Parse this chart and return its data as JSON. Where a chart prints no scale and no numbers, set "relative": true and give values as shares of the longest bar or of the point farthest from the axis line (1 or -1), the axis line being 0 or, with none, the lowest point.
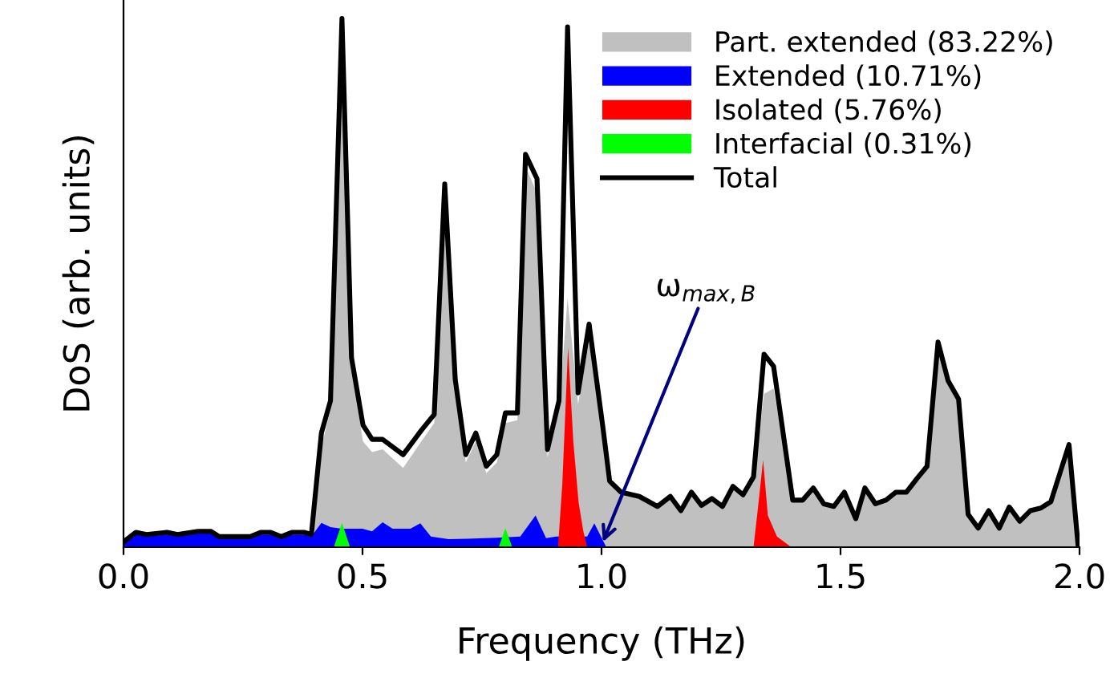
{
  "chart_data": {
    "type": "area",
    "relative": true,
    "xlabel": "Frequency (THz)",
    "ylabel": "DoS (arb. units)",
    "xlim": [
      0,
      2.0
    ],
    "xticks": [
      {
        "value": 0,
        "label": "0.0"
      },
      0.5,
      {
        "value": 1,
        "label": "1.0"
      },
      1.5,
      {
        "value": 2,
        "label": "2.0"
      }
    ],
    "legend": "top right",
    "grid": false,
    "annotations": [
      {
        "text": "ω$_{max,B}$",
        "x": 1.003,
        "y": 0.01
      }
    ],
    "series": [
      {
        "name": "Part. extended (83.22%)",
        "color": "#c0c0c0",
        "x": [
          0.39,
          0.414,
          0.433,
          0.457,
          0.477,
          0.501,
          0.52,
          0.542,
          0.585,
          0.623,
          0.65,
          0.672,
          0.694,
          0.716,
          0.737,
          0.759,
          0.781,
          0.799,
          0.824,
          0.841,
          0.865,
          0.887,
          0.911,
          0.929,
          0.951,
          0.974,
          1.003,
          1.017,
          1.041,
          1.079,
          1.117,
          1.144,
          1.166,
          1.188,
          1.209,
          1.231,
          1.253,
          1.275,
          1.296,
          1.318,
          1.34,
          1.36,
          1.4,
          1.421,
          1.443,
          1.465,
          1.486,
          1.508,
          1.532,
          1.551,
          1.573,
          1.595,
          1.616,
          1.638,
          1.66,
          1.681,
          1.704,
          1.725,
          1.747,
          1.767,
          1.788,
          1.81,
          1.832,
          1.853,
          1.875,
          1.897,
          1.919,
          1.94,
          1.978,
          1.997
        ],
        "values": [
          0.02,
          0.19,
          0.26,
          0.97,
          0.34,
          0.2,
          0.18,
          0.185,
          0.15,
          0.2,
          0.235,
          0.66,
          0.3,
          0.16,
          0.2,
          0.14,
          0.16,
          0.235,
          0.24,
          0.72,
          0.67,
          0.17,
          0.26,
          0.47,
          0.27,
          0.39,
          0.21,
          0.12,
          0.1,
          0.092,
          0.073,
          0.092,
          0.065,
          0.1,
          0.075,
          0.088,
          0.073,
          0.11,
          0.095,
          0.125,
          0.29,
          0.3,
          0.085,
          0.085,
          0.108,
          0.078,
          0.073,
          0.1,
          0.05,
          0.108,
          0.078,
          0.085,
          0.1,
          0.1,
          0.126,
          0.149,
          0.384,
          0.311,
          0.276,
          0.058,
          0.032,
          0.065,
          0.032,
          0.072,
          0.045,
          0.065,
          0.07,
          0.082,
          0.19,
          0.0
        ]
      },
      {
        "name": "Extended (10.71%)",
        "color": "#0000ff",
        "x": [
          0.0,
          0.026,
          0.048,
          0.091,
          0.113,
          0.156,
          0.183,
          0.2,
          0.265,
          0.287,
          0.308,
          0.33,
          0.352,
          0.379,
          0.393,
          0.414,
          0.433,
          0.457,
          0.5,
          0.52,
          0.542,
          0.563,
          0.6,
          0.621,
          0.643,
          0.68,
          0.72,
          0.78,
          0.83,
          0.862,
          0.884,
          0.905,
          0.97,
          0.985,
          1.01
        ],
        "values": [
          0.008,
          0.024,
          0.02,
          0.024,
          0.02,
          0.026,
          0.026,
          0.016,
          0.016,
          0.024,
          0.024,
          0.016,
          0.024,
          0.024,
          0.02,
          0.046,
          0.038,
          0.035,
          0.035,
          0.03,
          0.047,
          0.035,
          0.035,
          0.045,
          0.02,
          0.015,
          0.016,
          0.018,
          0.02,
          0.06,
          0.017,
          0.02,
          0.02,
          0.045,
          0.0
        ]
      },
      {
        "name": "Isolated (5.76%)",
        "color": "#ff0000",
        "x": [
          0.909,
          0.918,
          0.93,
          0.941,
          0.952,
          0.962,
          0.97,
          1.318,
          1.328,
          1.338,
          1.348,
          1.367,
          1.397
        ],
        "values": [
          0.0,
          0.12,
          0.378,
          0.2,
          0.085,
          0.03,
          0.0,
          0.0,
          0.08,
          0.165,
          0.06,
          0.02,
          0.0
        ]
      },
      {
        "name": "Interfacial (0.31%)",
        "color": "#00ff00",
        "x": [
          0.44,
          0.457,
          0.474,
          0.485,
          0.785,
          0.799,
          0.813
        ],
        "values": [
          0.0,
          0.046,
          0.0,
          null,
          0.0,
          0.036,
          0.0
        ]
      },
      {
        "name": "Total",
        "type": "line",
        "color": "#000000",
        "x": [
          0.0,
          0.026,
          0.048,
          0.091,
          0.113,
          0.156,
          0.183,
          0.2,
          0.265,
          0.287,
          0.308,
          0.33,
          0.352,
          0.379,
          0.393,
          0.414,
          0.433,
          0.457,
          0.477,
          0.501,
          0.52,
          0.542,
          0.585,
          0.623,
          0.65,
          0.672,
          0.694,
          0.716,
          0.737,
          0.759,
          0.781,
          0.799,
          0.824,
          0.841,
          0.865,
          0.887,
          0.911,
          0.929,
          0.951,
          0.974,
          1.003,
          1.017,
          1.041,
          1.079,
          1.117,
          1.144,
          1.166,
          1.188,
          1.209,
          1.231,
          1.253,
          1.275,
          1.296,
          1.318,
          1.34,
          1.36,
          1.4,
          1.421,
          1.443,
          1.465,
          1.486,
          1.508,
          1.532,
          1.551,
          1.573,
          1.595,
          1.616,
          1.638,
          1.66,
          1.681,
          1.704,
          1.725,
          1.747,
          1.767,
          1.788,
          1.81,
          1.832,
          1.853,
          1.875,
          1.897,
          1.919,
          1.94,
          1.978,
          1.997
        ],
        "values": [
          0.01,
          0.028,
          0.024,
          0.028,
          0.024,
          0.03,
          0.03,
          0.02,
          0.02,
          0.028,
          0.028,
          0.02,
          0.028,
          0.028,
          0.024,
          0.216,
          0.277,
          1.0,
          0.358,
          0.231,
          0.204,
          0.204,
          0.175,
          0.221,
          0.251,
          0.687,
          0.317,
          0.175,
          0.216,
          0.153,
          0.175,
          0.254,
          0.254,
          0.743,
          0.697,
          0.185,
          0.277,
          0.984,
          0.292,
          0.422,
          0.226,
          0.125,
          0.104,
          0.096,
          0.077,
          0.096,
          0.069,
          0.104,
          0.079,
          0.092,
          0.077,
          0.115,
          0.099,
          0.133,
          0.365,
          0.342,
          0.089,
          0.089,
          0.112,
          0.082,
          0.077,
          0.104,
          0.054,
          0.112,
          0.082,
          0.089,
          0.104,
          0.104,
          0.13,
          0.153,
          0.388,
          0.315,
          0.28,
          0.062,
          0.036,
          0.069,
          0.036,
          0.076,
          0.049,
          0.069,
          0.074,
          0.086,
          0.194,
          0.003
        ]
      }
    ]
  }
}
